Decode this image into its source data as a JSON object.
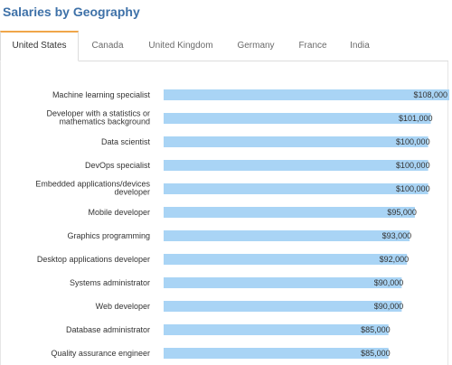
{
  "title": "Salaries by Geography",
  "tabs": [
    {
      "label": "United States",
      "active": true
    },
    {
      "label": "Canada",
      "active": false
    },
    {
      "label": "United Kingdom",
      "active": false
    },
    {
      "label": "Germany",
      "active": false
    },
    {
      "label": "France",
      "active": false
    },
    {
      "label": "India",
      "active": false
    }
  ],
  "colors": {
    "bar": "#a9d4f5",
    "title": "#3e71a8",
    "active_tab_accent": "#f0a64a"
  },
  "chart_data": {
    "type": "bar",
    "orientation": "horizontal",
    "categories": [
      "Machine learning specialist",
      "Developer with a statistics or mathematics background",
      "Data scientist",
      "DevOps specialist",
      "Embedded applications/devices developer",
      "Mobile developer",
      "Graphics programming",
      "Desktop applications developer",
      "Systems administrator",
      "Web developer",
      "Database administrator",
      "Quality assurance engineer"
    ],
    "category_lines": [
      [
        "Machine learning specialist"
      ],
      [
        "Developer with a statistics or",
        "mathematics background"
      ],
      [
        "Data scientist"
      ],
      [
        "DevOps specialist"
      ],
      [
        "Embedded applications/devices",
        "developer"
      ],
      [
        "Mobile developer"
      ],
      [
        "Graphics programming"
      ],
      [
        "Desktop applications developer"
      ],
      [
        "Systems administrator"
      ],
      [
        "Web developer"
      ],
      [
        "Database administrator"
      ],
      [
        "Quality assurance engineer"
      ]
    ],
    "values": [
      108000,
      101000,
      100000,
      100000,
      100000,
      95000,
      93000,
      92000,
      90000,
      90000,
      85000,
      85000
    ],
    "value_labels": [
      "$108,000",
      "$101,000",
      "$100,000",
      "$100,000",
      "$100,000",
      "$95,000",
      "$93,000",
      "$92,000",
      "$90,000",
      "$90,000",
      "$85,000",
      "$85,000"
    ],
    "xlim": [
      0,
      108000
    ],
    "grid": false,
    "legend": "none"
  }
}
